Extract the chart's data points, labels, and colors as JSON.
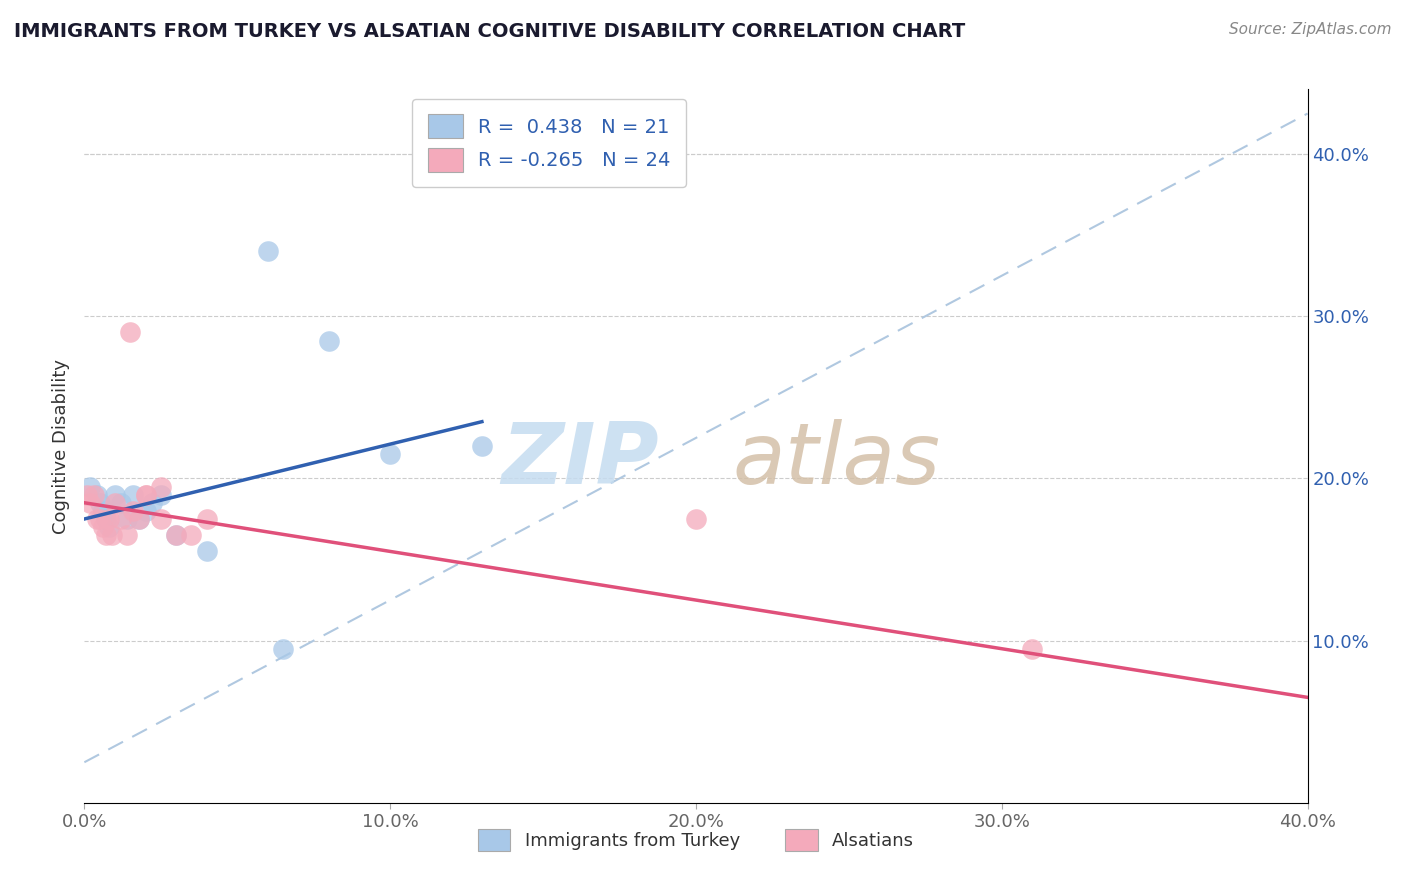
{
  "title": "IMMIGRANTS FROM TURKEY VS ALSATIAN COGNITIVE DISABILITY CORRELATION CHART",
  "source_text": "Source: ZipAtlas.com",
  "ylabel": "Cognitive Disability",
  "xlim": [
    0.0,
    0.4
  ],
  "ylim": [
    0.0,
    0.44
  ],
  "xtick_labels": [
    "0.0%",
    "10.0%",
    "20.0%",
    "30.0%",
    "40.0%"
  ],
  "xtick_vals": [
    0.0,
    0.1,
    0.2,
    0.3,
    0.4
  ],
  "ytick_labels_right": [
    "10.0%",
    "20.0%",
    "30.0%",
    "40.0%"
  ],
  "ytick_vals_right": [
    0.1,
    0.2,
    0.3,
    0.4
  ],
  "blue_color": "#A8C8E8",
  "pink_color": "#F4AABB",
  "blue_line_color": "#3060B0",
  "pink_line_color": "#E0507A",
  "dashed_line_color": "#B0C8E0",
  "legend_R1": "R =  0.438",
  "legend_N1": "N = 21",
  "legend_R2": "R = -0.265",
  "legend_N2": "N = 24",
  "legend_label1": "Immigrants from Turkey",
  "legend_label2": "Alsatians",
  "blue_x": [
    0.002,
    0.004,
    0.005,
    0.006,
    0.007,
    0.008,
    0.01,
    0.012,
    0.014,
    0.016,
    0.018,
    0.02,
    0.022,
    0.025,
    0.03,
    0.04,
    0.06,
    0.08,
    0.1,
    0.13,
    0.065
  ],
  "blue_y": [
    0.195,
    0.19,
    0.185,
    0.18,
    0.175,
    0.17,
    0.19,
    0.185,
    0.175,
    0.19,
    0.175,
    0.18,
    0.185,
    0.19,
    0.165,
    0.155,
    0.34,
    0.285,
    0.215,
    0.22,
    0.095
  ],
  "pink_x": [
    0.001,
    0.002,
    0.003,
    0.004,
    0.005,
    0.006,
    0.007,
    0.008,
    0.009,
    0.01,
    0.012,
    0.014,
    0.016,
    0.018,
    0.02,
    0.025,
    0.03,
    0.035,
    0.015,
    0.02,
    0.025,
    0.04,
    0.31,
    0.2
  ],
  "pink_y": [
    0.19,
    0.185,
    0.19,
    0.175,
    0.175,
    0.17,
    0.165,
    0.175,
    0.165,
    0.185,
    0.175,
    0.165,
    0.18,
    0.175,
    0.19,
    0.195,
    0.165,
    0.165,
    0.29,
    0.19,
    0.175,
    0.175,
    0.095,
    0.175
  ],
  "background_color": "#FFFFFF",
  "plot_bg_color": "#FFFFFF",
  "grid_color": "#CCCCCC"
}
